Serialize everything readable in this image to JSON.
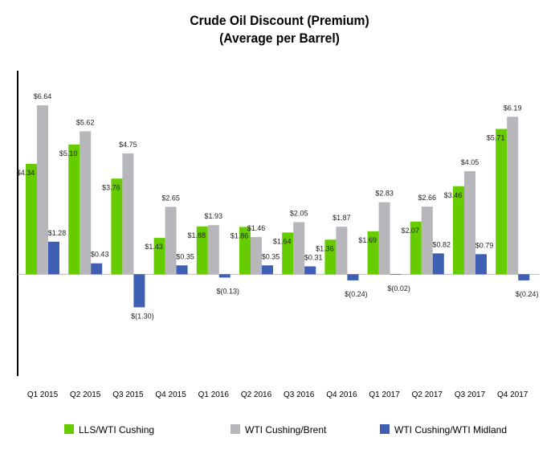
{
  "chart_data": {
    "type": "bar",
    "title": "Crude Oil Discount (Premium)",
    "subtitle": "(Average per Barrel)",
    "xlabel": "",
    "ylabel": "",
    "ylim": [
      -4,
      8
    ],
    "grid": false,
    "legend_position": "bottom",
    "categories": [
      "Q1 2015",
      "Q2 2015",
      "Q3 2015",
      "Q4 2015",
      "Q1 2016",
      "Q2 2016",
      "Q3 2016",
      "Q4 2016",
      "Q1 2017",
      "Q2 2017",
      "Q3 2017",
      "Q4 2017"
    ],
    "series": [
      {
        "name": "LLS/WTI Cushing",
        "color": "#66cc00",
        "values": [
          4.34,
          5.1,
          3.76,
          1.43,
          1.88,
          1.86,
          1.64,
          1.36,
          1.69,
          2.07,
          3.46,
          5.71
        ],
        "labels": [
          "$4.34",
          "$5.10",
          "$3.76",
          "$1.43",
          "$1.88",
          "$1.86",
          "$1.64",
          "$1.36",
          "$1.69",
          "$2.07",
          "$3.46",
          "$5.71"
        ]
      },
      {
        "name": "WTI Cushing/Brent",
        "color": "#b7b7bb",
        "values": [
          6.64,
          5.62,
          4.75,
          2.65,
          1.93,
          1.46,
          2.05,
          1.87,
          2.83,
          2.66,
          4.05,
          6.19
        ],
        "labels": [
          "$6.64",
          "$5.62",
          "$4.75",
          "$2.65",
          "$1.93",
          "$1.46",
          "$2.05",
          "$1.87",
          "$2.83",
          "$2.66",
          "$4.05",
          "$6.19"
        ]
      },
      {
        "name": "WTI Cushing/WTI Midland",
        "color": "#3f5fb5",
        "values": [
          1.28,
          0.43,
          -1.3,
          0.35,
          -0.13,
          0.35,
          0.31,
          -0.24,
          -0.02,
          0.82,
          0.79,
          -0.24
        ],
        "labels": [
          "$1.28",
          "$0.43",
          "$(1.30)",
          "$0.35",
          "$(0.13)",
          "$0.35",
          "$0.31",
          "$(0.24)",
          "$(0.02)",
          "$0.82",
          "$0.79",
          "$(0.24)"
        ]
      }
    ]
  }
}
